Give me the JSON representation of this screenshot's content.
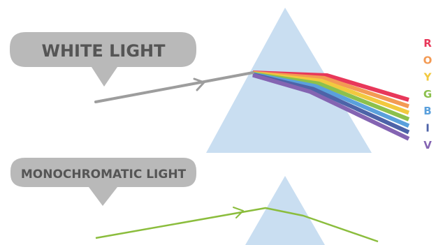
{
  "labels": {
    "white_light": "WHITE LIGHT",
    "monochromatic_light": "MONOCHROMATIC LIGHT"
  },
  "spectrum": [
    {
      "letter": "R",
      "color": "#e8385a"
    },
    {
      "letter": "O",
      "color": "#f39a54"
    },
    {
      "letter": "Y",
      "color": "#f2c93f"
    },
    {
      "letter": "G",
      "color": "#8cc04d"
    },
    {
      "letter": "B",
      "color": "#5aa0dc"
    },
    {
      "letter": "I",
      "color": "#4d63a8"
    },
    {
      "letter": "V",
      "color": "#8464b2"
    }
  ],
  "colors": {
    "prism": "#c9def1",
    "bubble": "#b9b9b9",
    "bubble_text": "#555555",
    "white_beam": "#9d9d9d",
    "mono_beam": "#8bbd3d"
  },
  "icons": {
    "beam_arrow": "arrowhead-icon"
  }
}
